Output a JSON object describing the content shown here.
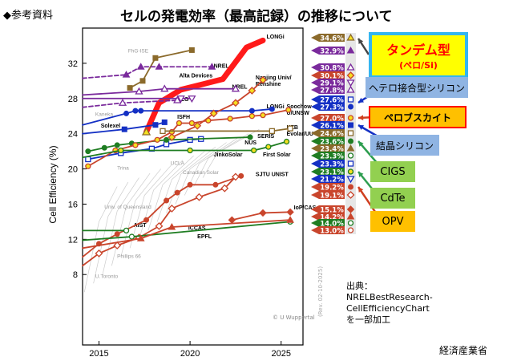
{
  "header": {
    "ref_label": "◆参考資料",
    "title": "セルの発電効率（最高記録）の推移について"
  },
  "callouts": {
    "tandem": "タンデム型",
    "tandem_sub": "(ペロ/Si)",
    "hetero": "ヘテロ接合型シリコン",
    "perovskite": "ペロブスカイト",
    "crystalline": "結晶シリコン",
    "cigs": "CIGS",
    "cdte": "CdTe",
    "opv": "OPV"
  },
  "source": {
    "line1": "出典：",
    "line2": "NRELBestResearch-",
    "line3": "CellEfficiencyChart",
    "line4": "を一部加工"
  },
  "ministry": "経済産業省",
  "colors": {
    "brown": "#8b6a2b",
    "purple": "#7a2a9c",
    "red": "#c9452c",
    "blue": "#1430c4",
    "green": "#1f7d22",
    "tandem": "#ff1a1a",
    "yellow": "#f5e020"
  },
  "chart_data": {
    "type": "line",
    "xlabel": "",
    "ylabel": "Cell Efficiency (%)",
    "xlim": [
      2014.1,
      2026.2
    ],
    "ylim": [
      0,
      36
    ],
    "xticks": [
      2015,
      2020,
      2025
    ],
    "yticks": [
      8,
      12,
      16,
      20,
      24,
      28,
      32
    ],
    "grid": false,
    "note": "(Rev. 02-10-2025)",
    "credit": "© U Wuppertal",
    "series": [
      {
        "color": "#ff1a1a",
        "marker": "none",
        "thick": true,
        "x": [
          2017.6,
          2018.3,
          2019.5,
          2021.8,
          2023.1,
          2024.0
        ],
        "y": [
          24.2,
          27.5,
          29.0,
          30.2,
          33.8,
          34.6
        ]
      },
      {
        "color": "#8b6a2b",
        "marker": "square",
        "x": [
          2016.7,
          2017.4,
          2018.1,
          2020.1
        ],
        "y": [
          29.2,
          30.0,
          32.6,
          33.5
        ]
      },
      {
        "color": "#7a2a9c",
        "marker": "triangle",
        "dashed": true,
        "x": [
          2014.1,
          2016.5,
          2017.3,
          2018.3,
          2021.2
        ],
        "y": [
          30.3,
          30.7,
          31.6,
          31.6,
          31.6
        ]
      },
      {
        "color": "#7a2a9c",
        "marker": "triangle-open",
        "x": [
          2014.1,
          2017.2,
          2018.6,
          2022.5
        ],
        "y": [
          28.4,
          28.8,
          29.1,
          29.1
        ]
      },
      {
        "color": "#7a2a9c",
        "marker": "triangle-down-open",
        "x": [
          2014.1,
          2019.5,
          2020.1
        ],
        "y": [
          28.0,
          28.0,
          28.0
        ]
      },
      {
        "color": "#7a2a9c",
        "marker": "triangle-open",
        "dashed": true,
        "dashed_only": true,
        "x": [
          2014.1,
          2016.3,
          2019.3
        ],
        "y": [
          27.0,
          27.5,
          27.8
        ]
      },
      {
        "color": "#1430c4",
        "marker": "circle",
        "x": [
          2014.1,
          2016.5,
          2017.0,
          2017.3,
          2023.4,
          2024.5
        ],
        "y": [
          25.0,
          26.3,
          26.6,
          26.6,
          26.6,
          26.8
        ]
      },
      {
        "color": "#1430c4",
        "marker": "square",
        "x": [
          2014.1,
          2016.4,
          2018.1,
          2018.6
        ],
        "y": [
          24.0,
          24.5,
          25.0,
          25.3
        ]
      },
      {
        "color": "#1430c4",
        "marker": "square-open",
        "x": [
          2014.4,
          2016.2,
          2017.9,
          2018.7,
          2020.0,
          2020.6
        ],
        "y": [
          21.1,
          21.8,
          22.3,
          22.8,
          23.3,
          23.4
        ]
      },
      {
        "color": "#1f7d22",
        "marker": "circle",
        "x": [
          2014.4,
          2015.3,
          2016.0,
          2016.8,
          2018.7,
          2023.3
        ],
        "y": [
          22.0,
          22.4,
          22.7,
          22.9,
          23.3,
          23.6
        ]
      },
      {
        "color": "#c9452c",
        "marker": "circle-yellow",
        "x": [
          2014.4,
          2015.9,
          2017.0,
          2018.2,
          2019.0,
          2019.4,
          2020.1,
          2021.0,
          2022.2,
          2023.4,
          2024.0,
          2025.4
        ],
        "y": [
          20.3,
          22.1,
          22.7,
          23.3,
          24.2,
          25.2,
          25.2,
          25.5,
          25.7,
          26.0,
          26.1,
          26.7
        ]
      },
      {
        "color": "#c9452c",
        "marker": "diamond-yellow",
        "x": [
          2019.0,
          2020.4,
          2021.3,
          2022.5,
          2023.4,
          2024.0
        ],
        "y": [
          23.6,
          24.9,
          26.3,
          27.5,
          28.9,
          30.1
        ]
      },
      {
        "color": "#1f7d22",
        "marker": "circle-yellow",
        "x": [
          2014.1,
          2016.2,
          2020.0,
          2023.5,
          2024.3,
          2025.3
        ],
        "y": [
          21.3,
          22.1,
          22.1,
          22.1,
          22.5,
          23.1
        ]
      },
      {
        "color": "#8b6a2b",
        "marker": "square-open",
        "x": [
          2018.5,
          2024.5,
          2025.5
        ],
        "y": [
          24.3,
          24.3,
          24.6
        ]
      },
      {
        "color": "#c9452c",
        "marker": "circle",
        "x": [
          2014.1,
          2015.0,
          2016.0,
          2017.6,
          2018.7,
          2019.3,
          2020.0,
          2021.4,
          2022.8
        ],
        "y": [
          10.0,
          11.5,
          12.6,
          14.2,
          16.4,
          17.3,
          18.2,
          18.2,
          19.2
        ]
      },
      {
        "color": "#c9452c",
        "marker": "diamond-open",
        "x": [
          2014.1,
          2015.0,
          2016.0,
          2017.2,
          2018.3,
          2019.0,
          2020.5,
          2021.9,
          2022.5
        ],
        "y": [
          9.0,
          10.4,
          11.3,
          12.2,
          13.5,
          15.5,
          16.8,
          17.8,
          19.1
        ]
      },
      {
        "color": "#1f7d22",
        "marker": "circle-open",
        "x": [
          2014.1,
          2016.5
        ],
        "y": [
          13.0,
          13.0
        ]
      },
      {
        "color": "#1f7d22",
        "marker": "circle-open",
        "x": [
          2014.1,
          2016.8,
          2025.5
        ],
        "y": [
          11.9,
          12.3,
          14.0
        ]
      },
      {
        "color": "#c9452c",
        "marker": "triangle",
        "x": [
          2014.1,
          2017.3,
          2019.0,
          2025.5
        ],
        "y": [
          11.0,
          12.1,
          13.4,
          14.2
        ]
      },
      {
        "color": "#c9452c",
        "marker": "diamond",
        "x": [
          2022.3,
          2024.0,
          2025.5
        ],
        "y": [
          14.2,
          15.0,
          15.1
        ]
      }
    ],
    "annotations": [
      {
        "text": "LONGi",
        "x": 2024.2,
        "y": 34.8,
        "bold": true
      },
      {
        "text": "NREL",
        "x": 2021.3,
        "y": 31.5,
        "bold": true
      },
      {
        "text": "Alta Devices",
        "x": 2019.4,
        "y": 30.4,
        "bold": true
      },
      {
        "text": "NREL",
        "x": 2022.7,
        "y": 29.1,
        "bold": true
      },
      {
        "text": "Nanjing Univ/ Renshine",
        "x": 2023.6,
        "y": 29.8,
        "bold": true
      },
      {
        "text": "LG",
        "x": 2019.5,
        "y": 27.7,
        "bold": true
      },
      {
        "text": "LONGi",
        "x": 2024.2,
        "y": 26.9,
        "bold": true
      },
      {
        "text": "ISFH",
        "x": 2019.3,
        "y": 25.7,
        "bold": true
      },
      {
        "text": "Soochow U/UNSW",
        "x": 2025.3,
        "y": 26.5,
        "bold": true
      },
      {
        "text": "Solexel",
        "x": 2015.1,
        "y": 24.7,
        "bold": true
      },
      {
        "text": "HZB",
        "x": 2025.3,
        "y": 24.5,
        "bold": true
      },
      {
        "text": "Evolar/UU",
        "x": 2025.3,
        "y": 23.8,
        "bold": true
      },
      {
        "text": "SERIS",
        "x": 2023.7,
        "y": 23.5,
        "bold": true
      },
      {
        "text": "NUS",
        "x": 2023.0,
        "y": 22.8,
        "bold": true
      },
      {
        "text": "First Solar",
        "x": 2024.0,
        "y": 21.4,
        "bold": true
      },
      {
        "text": "JinkoSolar",
        "x": 2021.3,
        "y": 21.4,
        "bold": true
      },
      {
        "text": "SJTU UNIST",
        "x": 2023.6,
        "y": 19.2,
        "bold": true
      },
      {
        "text": "AIST",
        "x": 2016.9,
        "y": 13.4,
        "bold": true
      },
      {
        "text": "ICCAS",
        "x": 2019.9,
        "y": 13.1,
        "bold": true
      },
      {
        "text": "EPFL",
        "x": 2020.4,
        "y": 12.4,
        "bold": true
      },
      {
        "text": "IoP/CAS",
        "x": 2025.7,
        "y": 15.4,
        "bold": true
      },
      {
        "text": "FhG-ISE",
        "x": 2016.6,
        "y": 33.2,
        "bold": false
      },
      {
        "text": "Kaneka",
        "x": 2014.8,
        "y": 26.0,
        "bold": false
      },
      {
        "text": "Trina",
        "x": 2016.0,
        "y": 19.9,
        "bold": false
      },
      {
        "text": "UCLA",
        "x": 2019.1,
        "y": 20.0,
        "bold": false
      },
      {
        "text": "Canadian Solar",
        "x": 2019.6,
        "y": 19.7,
        "bold": false
      },
      {
        "text": "Univ. of Queensland",
        "x": 2015.3,
        "y": 15.5,
        "bold": false
      },
      {
        "text": "Phillips 66",
        "x": 2016.0,
        "y": 9.9,
        "bold": false
      },
      {
        "text": "U.Toronto",
        "x": 2014.8,
        "y": 7.6,
        "bold": false
      }
    ],
    "right_labels": [
      {
        "value": "34.6%",
        "color": "#8b6a2b",
        "marker": "triangle-yellow"
      },
      {
        "value": "32.9%",
        "color": "#7a2a9c",
        "marker": "triangle"
      },
      {
        "value": "30.8%",
        "color": "#7a2a9c",
        "marker": "triangle-open"
      },
      {
        "value": "30.1%",
        "color": "#c9452c",
        "marker": "diamond-yellow"
      },
      {
        "value": "29.1%",
        "color": "#7a2a9c",
        "marker": "triangle-down-open"
      },
      {
        "value": "27.8%",
        "color": "#7a2a9c",
        "marker": "triangle-open"
      },
      {
        "value": "27.6%",
        "color": "#1430c4",
        "marker": "square-open"
      },
      {
        "value": "27.3%",
        "color": "#1430c4",
        "marker": "circle"
      },
      {
        "value": "27.0%",
        "color": "#c9452c",
        "marker": "circle-yellow"
      },
      {
        "value": "26.1%",
        "color": "#1430c4",
        "marker": "square"
      },
      {
        "value": "24.6%",
        "color": "#8b6a2b",
        "marker": "square-open"
      },
      {
        "value": "23.6%",
        "color": "#1f7d22",
        "marker": "circle"
      },
      {
        "value": "23.4%",
        "color": "#8b6a2b",
        "marker": "triangle"
      },
      {
        "value": "23.3%",
        "color": "#1f7d22",
        "marker": "circle-open"
      },
      {
        "value": "23.3%",
        "color": "#1430c4",
        "marker": "square-open"
      },
      {
        "value": "23.1%",
        "color": "#1f7d22",
        "marker": "circle-yellow"
      },
      {
        "value": "21.2%",
        "color": "#1430c4",
        "marker": "triangle-down-open"
      },
      {
        "value": "19.2%",
        "color": "#c9452c",
        "marker": "circle"
      },
      {
        "value": "19.1%",
        "color": "#c9452c",
        "marker": "diamond-open"
      },
      {
        "value": "15.1%",
        "color": "#c9452c",
        "marker": "diamond"
      },
      {
        "value": "14.2%",
        "color": "#c9452c",
        "marker": "triangle"
      },
      {
        "value": "14.0%",
        "color": "#1f7d22",
        "marker": "circle-open"
      },
      {
        "value": "13.0%",
        "color": "#c9452c",
        "marker": "circle-open"
      }
    ]
  }
}
